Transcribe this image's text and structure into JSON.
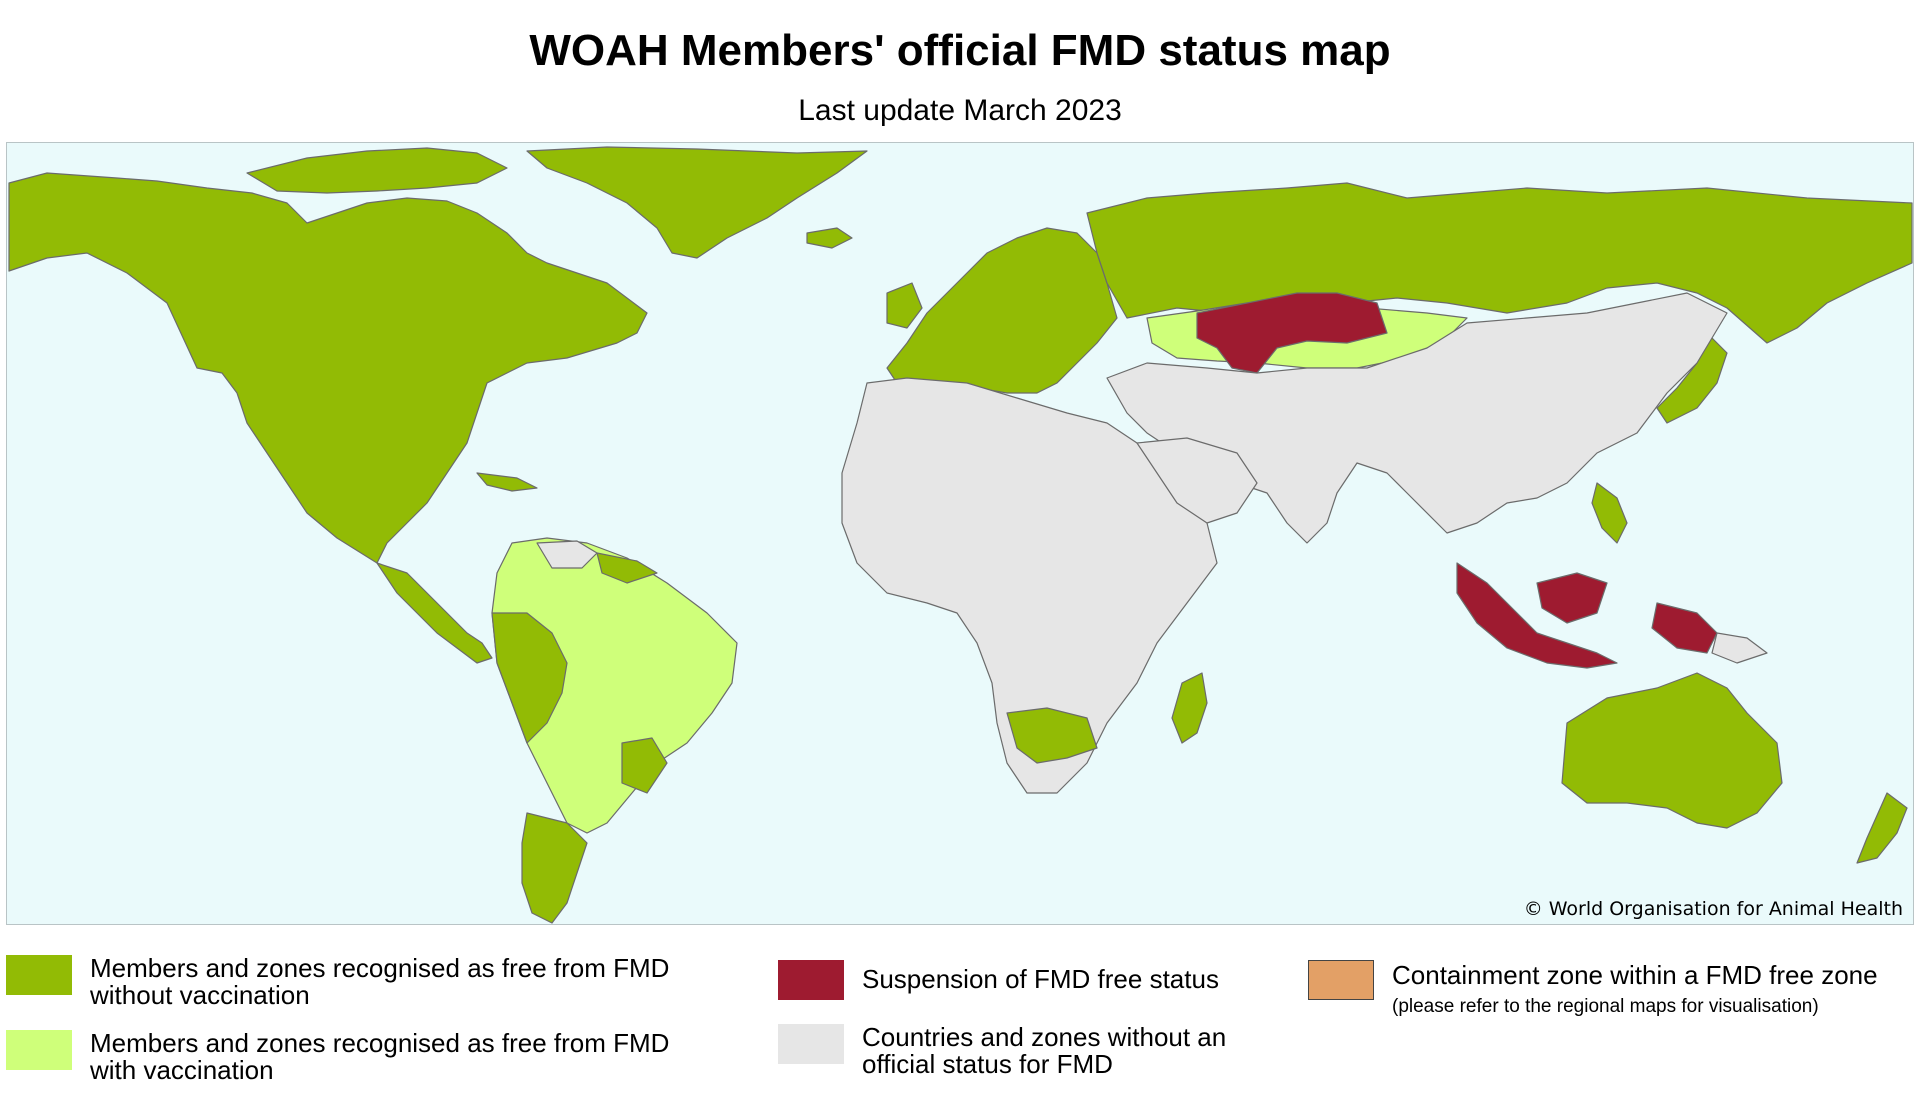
{
  "header": {
    "title": "WOAH Members' official FMD status map",
    "subtitle": "Last update March 2023"
  },
  "map": {
    "copyright": "© World Organisation for Animal Health",
    "colors": {
      "ocean": "#eafafb",
      "free_without_vaccination": "#92bb05",
      "free_with_vaccination": "#cfff7a",
      "suspension": "#9e1b30",
      "no_status": "#e6e6e6",
      "containment": "#e3a066",
      "border": "#6b6b6b"
    },
    "regions": [
      {
        "name": "North America",
        "status": "free_without_vaccination"
      },
      {
        "name": "Greenland",
        "status": "free_without_vaccination"
      },
      {
        "name": "Central America",
        "status": "free_without_vaccination"
      },
      {
        "name": "South America",
        "status": "free_with_vaccination"
      },
      {
        "name": "Europe",
        "status": "free_without_vaccination"
      },
      {
        "name": "Russia",
        "status": "free_without_vaccination"
      },
      {
        "name": "Kazakhstan",
        "status": "suspension"
      },
      {
        "name": "Africa",
        "status": "no_status"
      },
      {
        "name": "Southern Africa zone",
        "status": "free_without_vaccination"
      },
      {
        "name": "Madagascar",
        "status": "free_without_vaccination"
      },
      {
        "name": "Asia",
        "status": "no_status"
      },
      {
        "name": "Indonesia",
        "status": "suspension"
      },
      {
        "name": "Australia",
        "status": "free_without_vaccination"
      },
      {
        "name": "New Zealand",
        "status": "free_without_vaccination"
      },
      {
        "name": "Japan",
        "status": "free_without_vaccination"
      }
    ]
  },
  "legend": [
    {
      "key": "free_without_vaccination",
      "line1": "Members and zones recognised as free from FMD",
      "line2": "without vaccination",
      "color": "#92bb05"
    },
    {
      "key": "free_with_vaccination",
      "line1": "Members and zones recognised as free from FMD",
      "line2": "with vaccination",
      "color": "#cfff7a"
    },
    {
      "key": "suspension",
      "line1": "Suspension of FMD free status",
      "line2": "",
      "color": "#9e1b30"
    },
    {
      "key": "no_status",
      "line1": "Countries and zones without an",
      "line2": "official status for FMD",
      "color": "#e6e6e6"
    },
    {
      "key": "containment",
      "line1": "Containment zone within a FMD free zone",
      "note": "(please refer to the regional maps for visualisation)",
      "color": "#e3a066"
    }
  ]
}
